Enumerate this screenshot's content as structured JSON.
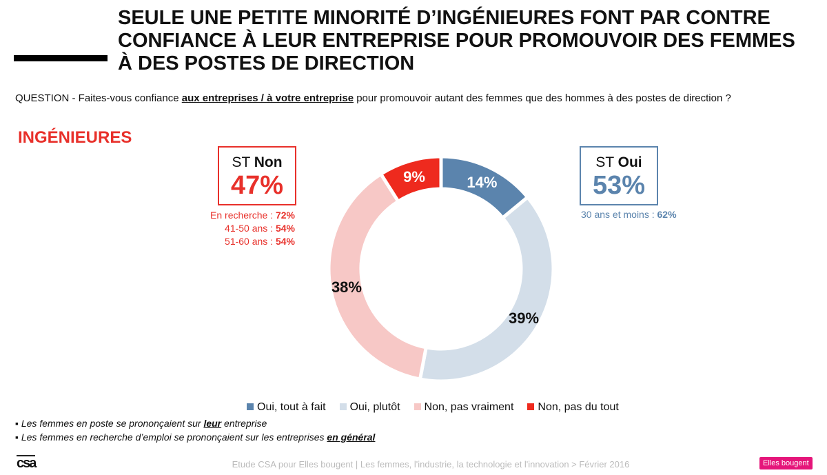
{
  "title": "SEULE UNE PETITE MINORITÉ D’INGÉNIEURES FONT PAR CONTRE CONFIANCE À LEUR ENTREPRISE POUR PROMOUVOIR DES FEMMES À DES POSTES DE DIRECTION",
  "title_lines": [
    "SEULE UNE PETITE MINORITÉ D’INGÉNIEURES FONT PAR CONTRE",
    "CONFIANCE À LEUR ENTREPRISE POUR PROMOUVOIR DES FEMMES",
    "À DES POSTES DE DIRECTION"
  ],
  "question": {
    "prefix": "QUESTION - Faites-vous confiance ",
    "emph": "aux entreprises / à votre entreprise",
    "suffix": " pour promouvoir autant des femmes que des hommes à des postes de direction ?"
  },
  "section": "INGÉNIEURES",
  "st_non": {
    "label_pre": "ST ",
    "label_bold": "Non",
    "value": "47%",
    "details": [
      {
        "label": "En recherche : ",
        "value": "72%"
      },
      {
        "label": "41-50 ans : ",
        "value": "54%"
      },
      {
        "label": "51-60 ans : ",
        "value": "54%"
      }
    ]
  },
  "st_oui": {
    "label_pre": "ST ",
    "label_bold": "Oui",
    "value": "53%",
    "details": [
      {
        "label": "30 ans et moins : ",
        "value": "62%"
      }
    ]
  },
  "chart_data": {
    "type": "pie",
    "variant": "donut",
    "categories": [
      "Oui, tout à fait",
      "Oui, plutôt",
      "Non, pas vraiment",
      "Non, pas du tout"
    ],
    "values": [
      14,
      39,
      38,
      9
    ],
    "labels": [
      "14%",
      "39%",
      "38%",
      "9%"
    ],
    "colors": [
      "#5b84ad",
      "#d3dee9",
      "#f7c8c6",
      "#ee2a1e"
    ],
    "label_colors": [
      "#ffffff",
      "#111111",
      "#111111",
      "#ffffff"
    ],
    "legend_placement": "bottom"
  },
  "notes": [
    {
      "pre": "Les femmes en poste se prononçaient sur ",
      "emph": "leur",
      "post": " entreprise"
    },
    {
      "pre": "Les femmes en recherche d’emploi se prononçaient sur les entreprises ",
      "emph": "en général",
      "post": ""
    }
  ],
  "footer": "Etude CSA pour Elles bougent | Les femmes, l'industrie, la technologie et l'innovation > Février 2016",
  "logo_left": "csa",
  "logo_right": "Elles bougent"
}
